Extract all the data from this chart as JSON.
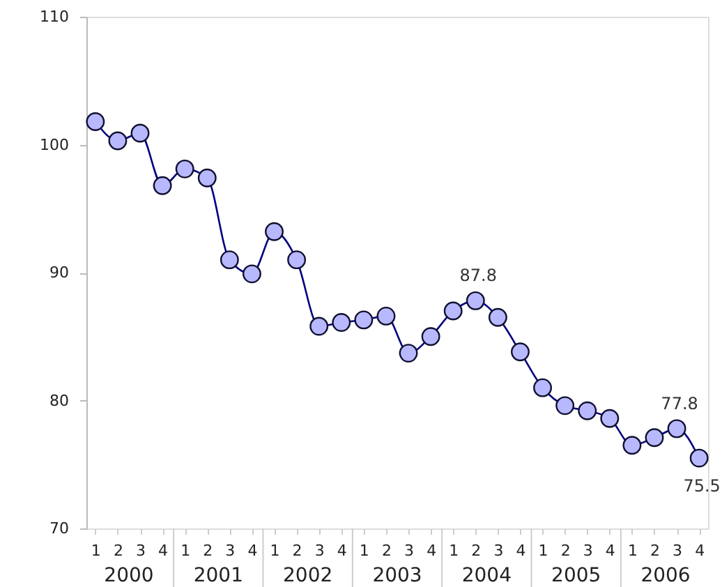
{
  "chart_data": {
    "type": "line",
    "categories": [
      "1",
      "2",
      "3",
      "4",
      "1",
      "2",
      "3",
      "4",
      "1",
      "2",
      "3",
      "4",
      "1",
      "2",
      "3",
      "4",
      "1",
      "2",
      "3",
      "4",
      "1",
      "2",
      "3",
      "4",
      "1",
      "2",
      "3",
      "4"
    ],
    "series": [
      {
        "color": "#b8b8ff",
        "values": [
          101.8,
          100.3,
          100.9,
          96.8,
          98.1,
          97.4,
          91.0,
          89.9,
          93.2,
          91.0,
          85.8,
          86.1,
          86.3,
          86.6,
          83.7,
          85.0,
          87.0,
          87.8,
          86.5,
          83.8,
          81.0,
          79.6,
          79.2,
          78.6,
          76.5,
          77.1,
          77.8,
          75.5
        ],
        "value_labels": [
          null,
          null,
          null,
          null,
          null,
          null,
          null,
          null,
          null,
          null,
          null,
          null,
          null,
          null,
          null,
          null,
          null,
          "87.8",
          null,
          null,
          null,
          null,
          null,
          null,
          null,
          null,
          "77.8",
          "75.5"
        ]
      }
    ],
    "annotations": [
      "2000",
      "2001",
      "2002",
      "2003",
      "2004",
      "2005",
      "2006"
    ],
    "ylim": [
      70,
      110
    ],
    "yticks": [
      70,
      80,
      90,
      100,
      110
    ],
    "marker": "circle",
    "grid": false,
    "legend": false
  }
}
